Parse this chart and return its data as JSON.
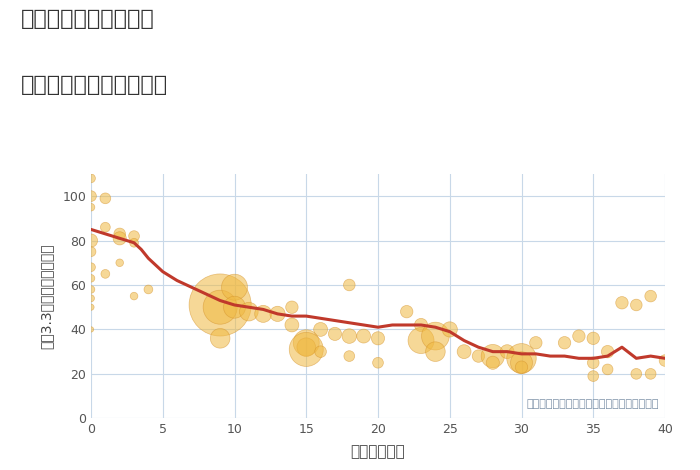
{
  "title_line1": "三重県鈴鹿市岸岡町の",
  "title_line2": "築年数別中古戸建て価格",
  "xlabel": "築年数（年）",
  "ylabel": "坪（3.3㎡）単価（万円）",
  "annotation": "円の大きさは、取引のあった物件面積を示す",
  "xlim": [
    0,
    40
  ],
  "ylim": [
    0,
    110
  ],
  "xticks": [
    0,
    5,
    10,
    15,
    20,
    25,
    30,
    35,
    40
  ],
  "yticks": [
    0,
    20,
    40,
    60,
    80,
    100
  ],
  "bg_color": "#ffffff",
  "plot_bg_color": "#ffffff",
  "grid_color": "#c8d8e8",
  "bubble_color": "#f0b942",
  "bubble_alpha": 0.55,
  "bubble_edge_color": "#d4922a",
  "line_color": "#c0392b",
  "line_width": 2.2,
  "scatter_x": [
    0,
    0,
    0,
    0,
    0,
    0,
    0,
    0,
    0,
    0,
    0,
    1,
    1,
    1,
    2,
    2,
    2,
    3,
    3,
    3,
    4,
    9,
    9,
    9,
    10,
    10,
    11,
    12,
    13,
    14,
    14,
    15,
    15,
    15,
    16,
    16,
    17,
    18,
    18,
    18,
    19,
    20,
    20,
    22,
    23,
    23,
    24,
    24,
    25,
    26,
    27,
    28,
    28,
    29,
    30,
    30,
    30,
    31,
    33,
    34,
    35,
    35,
    35,
    36,
    36,
    37,
    38,
    38,
    39,
    39,
    40
  ],
  "scatter_y": [
    108,
    100,
    95,
    80,
    75,
    68,
    63,
    58,
    54,
    50,
    40,
    99,
    86,
    65,
    83,
    81,
    70,
    82,
    79,
    55,
    58,
    51,
    50,
    36,
    59,
    50,
    48,
    47,
    47,
    42,
    50,
    34,
    32,
    31,
    40,
    30,
    38,
    60,
    37,
    28,
    37,
    36,
    25,
    48,
    42,
    35,
    37,
    30,
    40,
    30,
    28,
    28,
    25,
    30,
    27,
    25,
    23,
    34,
    34,
    37,
    36,
    25,
    19,
    30,
    22,
    52,
    51,
    20,
    55,
    20,
    26
  ],
  "scatter_size": [
    40,
    60,
    30,
    90,
    50,
    40,
    30,
    30,
    25,
    20,
    15,
    60,
    50,
    40,
    70,
    90,
    30,
    60,
    40,
    30,
    40,
    2000,
    600,
    200,
    350,
    250,
    180,
    150,
    120,
    100,
    80,
    350,
    180,
    600,
    100,
    70,
    90,
    70,
    110,
    60,
    100,
    90,
    60,
    80,
    90,
    350,
    400,
    200,
    120,
    100,
    80,
    280,
    90,
    100,
    450,
    250,
    80,
    80,
    80,
    80,
    80,
    70,
    60,
    80,
    60,
    80,
    70,
    60,
    70,
    60,
    70
  ],
  "line_x": [
    0,
    0.5,
    1,
    1.5,
    2,
    2.5,
    3,
    3.5,
    4,
    5,
    6,
    7,
    8,
    9,
    10,
    11,
    12,
    13,
    14,
    15,
    16,
    17,
    18,
    19,
    20,
    21,
    22,
    23,
    24,
    25,
    26,
    27,
    28,
    29,
    30,
    31,
    32,
    33,
    34,
    35,
    36,
    37,
    38,
    39,
    40
  ],
  "line_y": [
    85,
    84,
    83,
    82,
    81,
    80,
    79,
    76,
    72,
    66,
    62,
    59,
    56,
    53,
    51,
    50,
    49,
    47,
    46,
    46,
    45,
    44,
    43,
    42,
    41,
    42,
    42,
    42,
    41,
    39,
    35,
    32,
    30,
    30,
    29,
    29,
    28,
    28,
    27,
    27,
    28,
    32,
    27,
    28,
    27
  ]
}
